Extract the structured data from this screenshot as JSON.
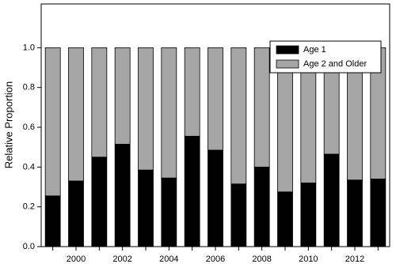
{
  "chart_data": {
    "type": "stacked-bar",
    "y_label": "Relative Proportion",
    "categories": [
      null,
      "2000",
      null,
      "2002",
      null,
      "2004",
      null,
      "2006",
      null,
      "2008",
      null,
      "2010",
      null,
      "2012",
      null
    ],
    "series": [
      {
        "name": "Age 1",
        "color": "#000000",
        "values": [
          0.255,
          0.33,
          0.45,
          0.515,
          0.385,
          0.345,
          0.555,
          0.485,
          0.315,
          0.4,
          0.275,
          0.32,
          0.465,
          0.335,
          0.34
        ]
      },
      {
        "name": "Age 2 and Older",
        "color": "#a6a6a6",
        "values": [
          0.745,
          0.67,
          0.55,
          0.485,
          0.615,
          0.655,
          0.445,
          0.515,
          0.685,
          0.6,
          0.725,
          0.68,
          0.535,
          0.665,
          0.66
        ]
      }
    ],
    "ylim": [
      0,
      1.22
    ],
    "yticks": [
      {
        "value": 0,
        "label": "0.0"
      },
      {
        "value": 0.2,
        "label": "0.2"
      },
      {
        "value": 0.4,
        "label": "0.4"
      },
      {
        "value": 0.6,
        "label": "0.6"
      },
      {
        "value": 0.8,
        "label": "0.8"
      },
      {
        "value": 1,
        "label": "1.0"
      }
    ],
    "legend": "upper right"
  }
}
